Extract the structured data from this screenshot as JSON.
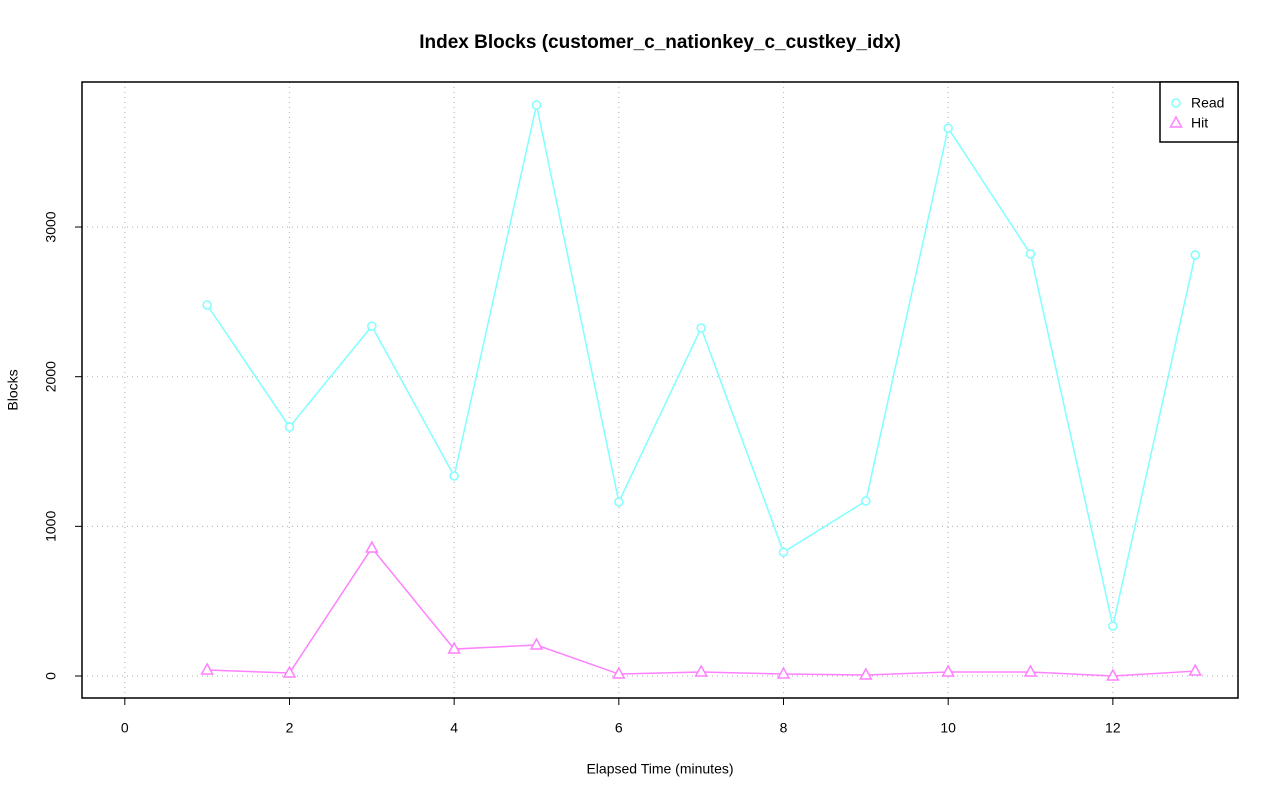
{
  "chart_data": {
    "type": "line",
    "title": "Index Blocks (customer_c_nationkey_c_custkey_idx)",
    "x_label": "Elapsed Time (minutes)",
    "y_label": "Blocks",
    "x": [
      1,
      2,
      3,
      4,
      5,
      6,
      7,
      8,
      9,
      10,
      11,
      12,
      13
    ],
    "series": [
      {
        "name": "Read",
        "color": "#80ffff",
        "marker": "circle",
        "values": [
          2479,
          1664,
          2338,
          1336,
          3815,
          1163,
          2325,
          828,
          1169,
          3661,
          2820,
          334,
          2813
        ]
      },
      {
        "name": "Hit",
        "color": "#ff80ff",
        "marker": "triangle",
        "values": [
          40,
          20,
          855,
          180,
          207,
          13,
          27,
          13,
          7,
          27,
          27,
          0,
          33
        ]
      }
    ],
    "xlim": [
      -0.52,
      13.52
    ],
    "ylim": [
      -147,
      3969
    ],
    "xticks": [
      0,
      2,
      4,
      6,
      8,
      10,
      12
    ],
    "yticks": [
      0,
      1000,
      2000,
      3000
    ],
    "grid": true,
    "legend": "topright"
  }
}
